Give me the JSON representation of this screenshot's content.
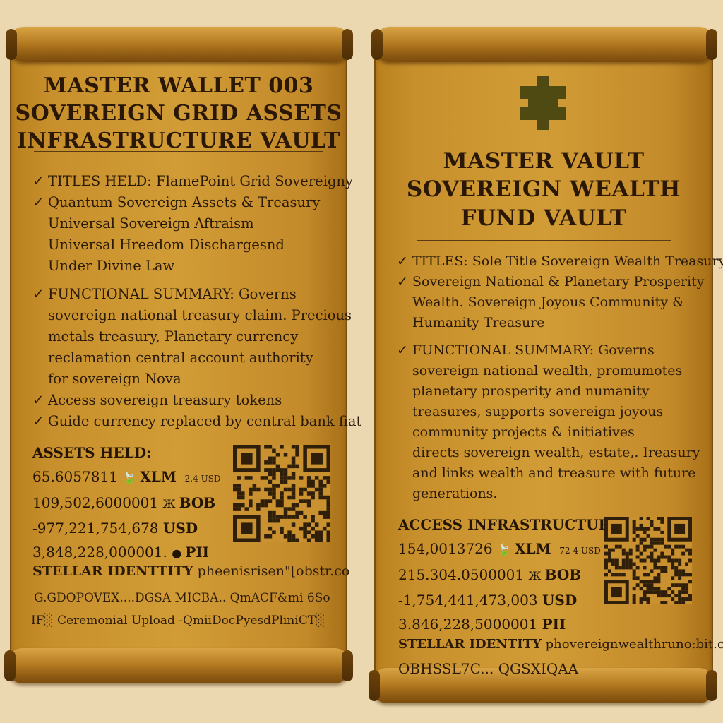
{
  "left_scroll": {
    "title_lines": [
      "MASTER WALLET 003",
      "SOVEREIGN GRID ASSETS",
      "INFRASTRUCTURE VAULT"
    ],
    "items": [
      {
        "check": true,
        "text": "TITLES HELD: FlamePoint Grid Sovereigny"
      },
      {
        "check": true,
        "text": "Quantum Sovereign Assets & Treasury"
      },
      {
        "check": false,
        "text": "Universal Sovereign Aftraism"
      },
      {
        "check": false,
        "text": "Universal Hreedom Dischargesnd"
      },
      {
        "check": false,
        "text": "Under  Divine Law"
      },
      {
        "gap": true
      },
      {
        "check": true,
        "text": "FUNCTIONAL SUMMARY: Governs"
      },
      {
        "check": false,
        "text": "sovereign national treasury claim. Precious"
      },
      {
        "check": false,
        "text": "metals treasury, Planetary currency"
      },
      {
        "check": false,
        "text": "reclamation central account authority"
      },
      {
        "check": false,
        "text": "for sovereign Nova"
      },
      {
        "check": true,
        "text": "Access sovereign treasury tokens"
      },
      {
        "check": true,
        "text": "Guide currency  replaced by central bank fiat"
      }
    ],
    "assets_label": "ASSETS HELD:",
    "assets": [
      {
        "amount": "65.6057811",
        "icon": "leaf-icon",
        "glyph": "🍃",
        "unit": "XLM",
        "note": "- 2.4 USD"
      },
      {
        "amount": "109,502,6000001",
        "icon": "butterfly-icon",
        "glyph": "Ж",
        "unit": "BOB",
        "note": ""
      },
      {
        "amount": "-977,221,754,678",
        "icon": "",
        "glyph": "",
        "unit": "USD",
        "note": ""
      },
      {
        "amount": "3,848,228,000001.",
        "icon": "drop-icon",
        "glyph": "●",
        "unit": "PII",
        "note": ""
      }
    ],
    "identity_label": "STELLAR IDENTTITY",
    "identity_value": "pheenisrisen\"[obstr.co",
    "address_line": "G.GDOPOVEX....DGSA MICBA.. QmACF&mi 6So",
    "upload_line": "IF░ Ceremonial Upload -QmiiDocPyesdPliniCT░"
  },
  "right_scroll": {
    "title_lines": [
      "MASTER VAULT",
      "SOVEREIGN WEALTH",
      "FUND VAULT"
    ],
    "items": [
      {
        "check": true,
        "text": "TITLES: Sole Title Sovereign Wealth Treasury"
      },
      {
        "check": true,
        "text": "Sovereign National & Planetary Prosperity"
      },
      {
        "check": false,
        "text": "Wealth. Sovereign Joyous Community &"
      },
      {
        "check": false,
        "text": "Humanity Treasure"
      },
      {
        "gap": true
      },
      {
        "check": true,
        "text": "FUNCTIONAL SUMMARY: Governs"
      },
      {
        "check": false,
        "text": "sovereign national wealth, promumotes"
      },
      {
        "check": false,
        "text": "planetary prosperity and numanity"
      },
      {
        "check": false,
        "text": "treasures, supports sovereign joyous"
      },
      {
        "check": false,
        "text": "community projects & initiatives"
      },
      {
        "check": false,
        "text": "directs sovereign wealth, estate,. Ireasury"
      },
      {
        "check": false,
        "text": "and links wealth and treasure with future"
      },
      {
        "check": false,
        "text": "generations."
      }
    ],
    "assets_label": "ACCESS INFRASTRUCTURE:",
    "assets": [
      {
        "amount": "154,0013726",
        "icon": "leaf-icon",
        "glyph": "🍃",
        "unit": "XLM",
        "note": "- 72 4 USD"
      },
      {
        "amount": "215.304.0500001",
        "icon": "butterfly-icon",
        "glyph": "Ж",
        "unit": "BOB",
        "note": ""
      },
      {
        "amount": "-1,754,441,473,003",
        "icon": "",
        "glyph": "",
        "unit": "USD",
        "note": ""
      },
      {
        "amount": "3.846,228,5000001",
        "icon": "",
        "glyph": "",
        "unit": "PII",
        "note": ""
      }
    ],
    "identity_label": "STELLAR IDENTITY",
    "identity_value": "phovereignwealthruno:bit.co",
    "address_line": "OBHSSL7C... QGSXIQAA"
  },
  "colors": {
    "background": "#ecd8b0",
    "parchment": "#c8902c",
    "ink": "#2b1a08",
    "emblem": "#4e4a12"
  },
  "icons": [
    "check-icon",
    "leaf-icon",
    "butterfly-icon",
    "drop-icon",
    "puzzle-emblem-icon",
    "qr-code-icon"
  ]
}
